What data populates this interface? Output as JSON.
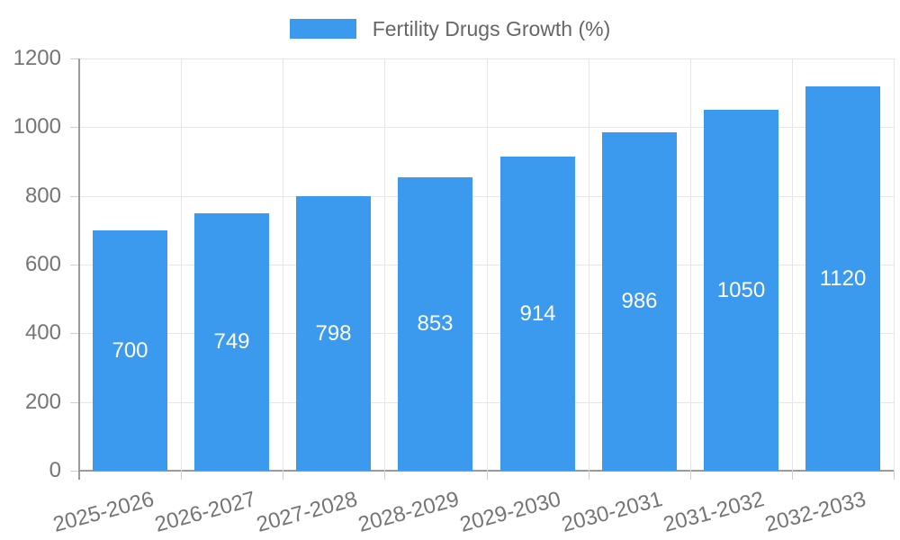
{
  "chart_data": {
    "type": "bar",
    "title": "Fertility Drugs Growth (%)",
    "legend": {
      "label": "Fertility Drugs Growth (%)",
      "position": "top"
    },
    "categories": [
      "2025-2026",
      "2026-2027",
      "2027-2028",
      "2028-2029",
      "2029-2030",
      "2030-2031",
      "2031-2032",
      "2032-2033"
    ],
    "values": [
      700,
      749,
      798,
      853,
      914,
      986,
      1050,
      1120
    ],
    "value_labels": [
      "700",
      "749",
      "798",
      "853",
      "914",
      "986",
      "1050",
      "1120"
    ],
    "xlabel": "",
    "ylabel": "",
    "ylim": [
      0,
      1200
    ],
    "yticks": [
      0,
      200,
      400,
      600,
      800,
      1000,
      1200
    ],
    "grid": "both",
    "x_tick_rotation_deg": -15
  },
  "colors": {
    "bar": "#3b99ee",
    "axis_line": "#9a9a9a",
    "grid_line": "#e6e6e6",
    "tick_mark": "#cfcfcf",
    "tick_text": "#757575",
    "legend_text": "#666666",
    "value_text": "#ffffff",
    "background": "#ffffff"
  }
}
